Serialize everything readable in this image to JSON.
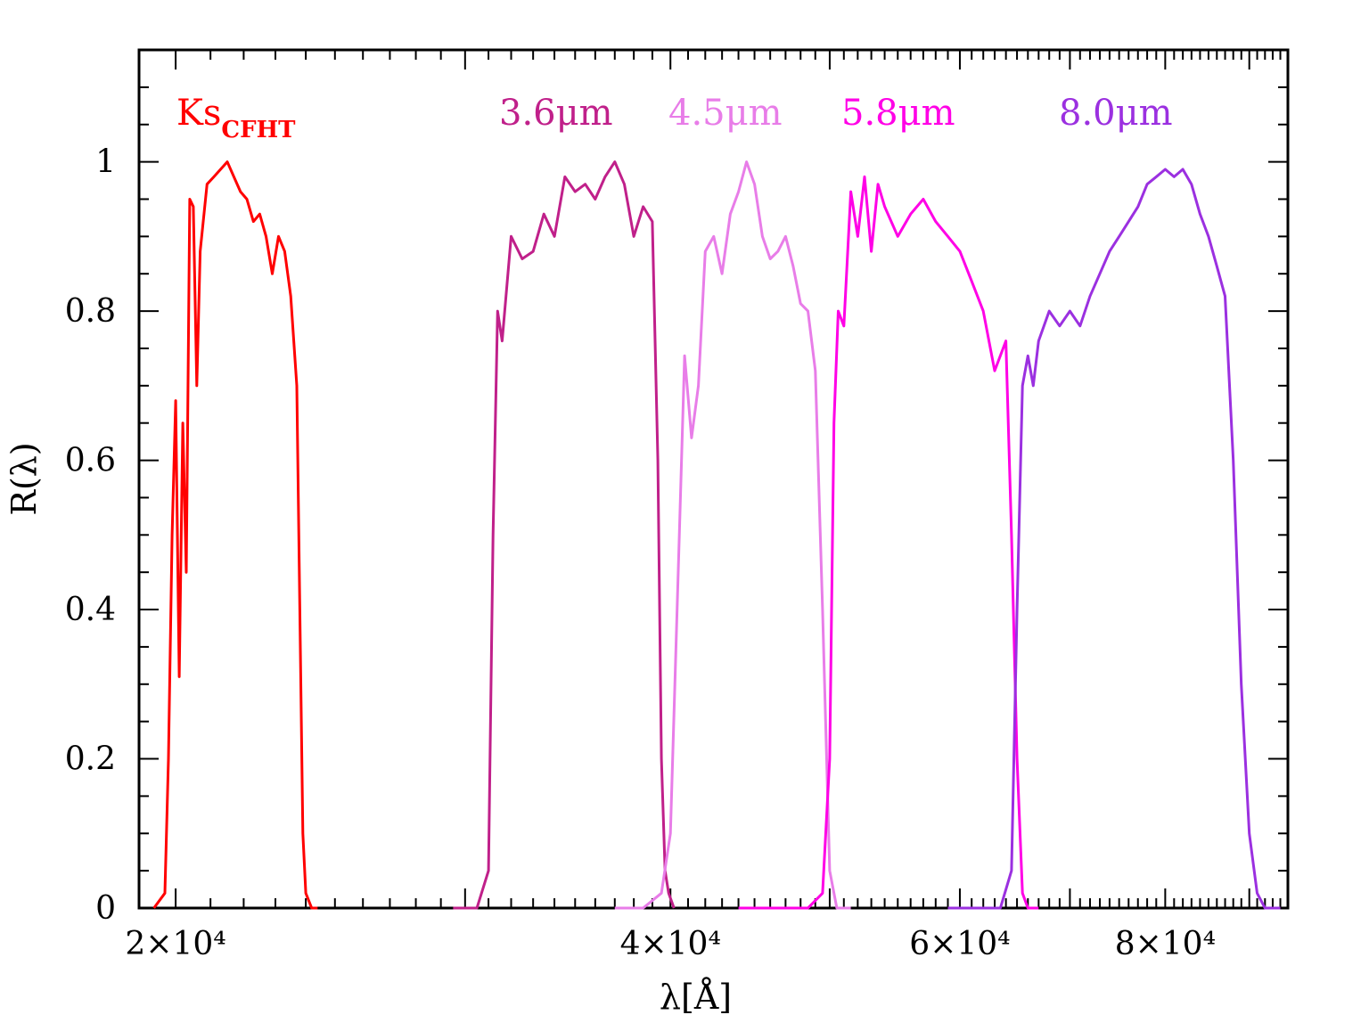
{
  "chart_data": {
    "type": "line",
    "xlabel": "λ[Å]",
    "ylabel": "R(λ)",
    "x_scale": "log",
    "xlim": [
      19000,
      95000
    ],
    "ylim": [
      0,
      1.15
    ],
    "x_ticks": [
      {
        "value": 20000,
        "label": "2×10⁴"
      },
      {
        "value": 40000,
        "label": "4×10⁴"
      },
      {
        "value": 60000,
        "label": "6×10⁴"
      },
      {
        "value": 80000,
        "label": "8×10⁴"
      }
    ],
    "y_ticks": [
      {
        "value": 0,
        "label": "0"
      },
      {
        "value": 0.2,
        "label": "0.2"
      },
      {
        "value": 0.4,
        "label": "0.4"
      },
      {
        "value": 0.6,
        "label": "0.6"
      },
      {
        "value": 0.8,
        "label": "0.8"
      },
      {
        "value": 1,
        "label": "1"
      }
    ],
    "grid": false,
    "series": [
      {
        "name": "Ks",
        "name_subscript": "CFHT",
        "color": "#ff0000",
        "x": [
          19400,
          19700,
          19800,
          19900,
          20000,
          20100,
          20200,
          20300,
          20400,
          20500,
          20600,
          20700,
          20900,
          21100,
          21300,
          21500,
          21700,
          21900,
          22100,
          22300,
          22500,
          22700,
          22900,
          23100,
          23300,
          23500,
          23700,
          23800,
          23900,
          24000,
          24200,
          24400
        ],
        "y": [
          0.0,
          0.02,
          0.2,
          0.5,
          0.68,
          0.31,
          0.65,
          0.45,
          0.95,
          0.94,
          0.7,
          0.88,
          0.97,
          0.98,
          0.99,
          1.0,
          0.98,
          0.96,
          0.95,
          0.92,
          0.93,
          0.9,
          0.85,
          0.9,
          0.88,
          0.82,
          0.7,
          0.4,
          0.1,
          0.02,
          0.0,
          0.0
        ]
      },
      {
        "name": "3.6μm",
        "color": "#c0208a",
        "x": [
          29500,
          30500,
          31000,
          31200,
          31400,
          31600,
          32000,
          32500,
          33000,
          33500,
          34000,
          34500,
          35000,
          35500,
          36000,
          36500,
          37000,
          37500,
          38000,
          38500,
          39000,
          39300,
          39500,
          39700,
          39900,
          40200
        ],
        "y": [
          0.0,
          0.0,
          0.05,
          0.5,
          0.8,
          0.76,
          0.9,
          0.87,
          0.88,
          0.93,
          0.9,
          0.98,
          0.96,
          0.97,
          0.95,
          0.98,
          1.0,
          0.97,
          0.9,
          0.94,
          0.92,
          0.6,
          0.2,
          0.05,
          0.02,
          0.0
        ]
      },
      {
        "name": "4.5μm",
        "color": "#e87de8",
        "x": [
          37000,
          38500,
          39500,
          40000,
          40500,
          40800,
          41200,
          41600,
          42000,
          42500,
          43000,
          43500,
          44000,
          44500,
          45000,
          45500,
          46000,
          46500,
          47000,
          47500,
          48000,
          48500,
          49000,
          49500,
          50000,
          50500,
          51500
        ],
        "y": [
          0.0,
          0.0,
          0.02,
          0.1,
          0.5,
          0.74,
          0.63,
          0.7,
          0.88,
          0.9,
          0.85,
          0.93,
          0.96,
          1.0,
          0.97,
          0.9,
          0.87,
          0.88,
          0.9,
          0.86,
          0.81,
          0.8,
          0.72,
          0.4,
          0.05,
          0.0,
          0.0
        ]
      },
      {
        "name": "5.8μm",
        "color": "#ff00e6",
        "x": [
          44000,
          48500,
          49500,
          50000,
          50300,
          50600,
          51000,
          51500,
          52000,
          52500,
          53000,
          53500,
          54000,
          55000,
          56000,
          57000,
          58000,
          59000,
          60000,
          61000,
          62000,
          63000,
          64000,
          64500,
          65000,
          65500,
          66000,
          67000
        ],
        "y": [
          0.0,
          0.0,
          0.02,
          0.2,
          0.65,
          0.8,
          0.78,
          0.96,
          0.9,
          0.98,
          0.88,
          0.97,
          0.94,
          0.9,
          0.93,
          0.95,
          0.92,
          0.9,
          0.88,
          0.84,
          0.8,
          0.72,
          0.76,
          0.5,
          0.2,
          0.02,
          0.0,
          0.0
        ]
      },
      {
        "name": "8.0μm",
        "color": "#9b30e0",
        "x": [
          59000,
          63500,
          64500,
          65000,
          65500,
          66000,
          66500,
          67000,
          68000,
          69000,
          70000,
          71000,
          72000,
          73000,
          74000,
          75000,
          76000,
          77000,
          78000,
          79000,
          80000,
          81000,
          82000,
          83000,
          84000,
          85000,
          86000,
          87000,
          88000,
          89000,
          90000,
          91000,
          92000,
          93000,
          94000
        ],
        "y": [
          0.0,
          0.0,
          0.05,
          0.4,
          0.7,
          0.74,
          0.7,
          0.76,
          0.8,
          0.78,
          0.8,
          0.78,
          0.82,
          0.85,
          0.88,
          0.9,
          0.92,
          0.94,
          0.97,
          0.98,
          0.99,
          0.98,
          0.99,
          0.97,
          0.93,
          0.9,
          0.86,
          0.82,
          0.6,
          0.3,
          0.1,
          0.02,
          0.0,
          0.0,
          0.0
        ]
      }
    ]
  }
}
